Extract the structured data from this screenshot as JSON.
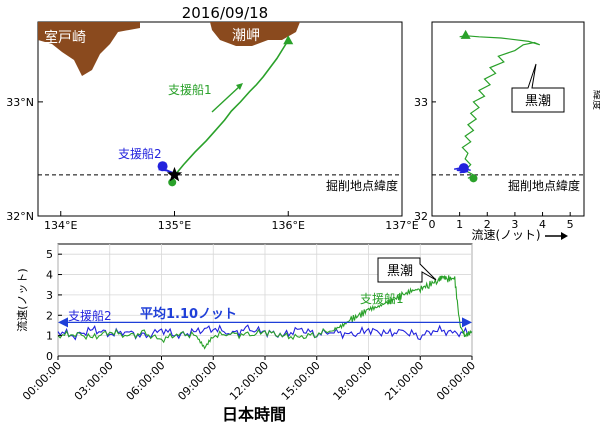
{
  "title": "2016/09/18",
  "colors": {
    "ship1": "#2aa12a",
    "ship2": "#2222dd",
    "land": "#8a4a1e",
    "avg": "#1f3fd8"
  },
  "map": {
    "type": "scatter",
    "xlim": [
      133.8,
      137.0
    ],
    "ylim": [
      32.0,
      33.7
    ],
    "xticks": [
      "134°E",
      "135°E",
      "136°E",
      "137°E"
    ],
    "yticks": [
      "32°N",
      "33°N"
    ],
    "place_muroto": "室戸崎",
    "place_shiomisaki": "潮岬",
    "ship1_label": "支援船1",
    "ship2_label": "支援船2",
    "drill_label": "掘削地点緯度",
    "drill_lat": 32.36,
    "drill_site": [
      135.0,
      32.36
    ],
    "ship1_track": [
      [
        134.98,
        32.33
      ],
      [
        135.08,
        32.45
      ],
      [
        135.18,
        32.56
      ],
      [
        135.28,
        32.66
      ],
      [
        135.36,
        32.75
      ],
      [
        135.44,
        32.84
      ],
      [
        135.5,
        32.92
      ],
      [
        135.58,
        33.0
      ],
      [
        135.66,
        33.09
      ],
      [
        135.72,
        33.15
      ],
      [
        135.78,
        33.22
      ],
      [
        135.84,
        33.3
      ],
      [
        135.9,
        33.38
      ],
      [
        135.95,
        33.46
      ],
      [
        136.0,
        33.54
      ]
    ],
    "ship2_track": [
      [
        134.86,
        32.41
      ],
      [
        134.93,
        32.4
      ],
      [
        134.98,
        32.38
      ]
    ]
  },
  "lat_speed": {
    "type": "line",
    "xlabel": "流速(ノット)",
    "xlim": [
      0,
      5.5
    ],
    "ylim": [
      32.0,
      33.7
    ],
    "xticks": [
      "0",
      "1",
      "2",
      "3",
      "4",
      "5"
    ],
    "yticks": [
      "32",
      "33"
    ],
    "ylabel": "緯度",
    "callout": "黒潮",
    "drill_label": "掘削地点緯度",
    "drill_lat": 32.36,
    "ship1": [
      [
        1.3,
        32.33
      ],
      [
        1.5,
        32.36
      ],
      [
        1.2,
        32.4
      ],
      [
        1.4,
        32.45
      ],
      [
        1.2,
        32.5
      ],
      [
        1.3,
        32.55
      ],
      [
        1.1,
        32.6
      ],
      [
        1.4,
        32.65
      ],
      [
        1.2,
        32.7
      ],
      [
        1.5,
        32.75
      ],
      [
        1.3,
        32.8
      ],
      [
        1.6,
        32.85
      ],
      [
        1.4,
        32.9
      ],
      [
        1.7,
        32.95
      ],
      [
        1.5,
        33.0
      ],
      [
        1.9,
        33.05
      ],
      [
        1.7,
        33.1
      ],
      [
        2.1,
        33.15
      ],
      [
        1.9,
        33.2
      ],
      [
        2.3,
        33.25
      ],
      [
        2.1,
        33.3
      ],
      [
        2.6,
        33.35
      ],
      [
        2.4,
        33.4
      ],
      [
        3.0,
        33.45
      ],
      [
        3.3,
        33.5
      ],
      [
        3.7,
        33.52
      ],
      [
        3.9,
        33.5
      ],
      [
        3.5,
        33.53
      ],
      [
        2.5,
        33.56
      ],
      [
        1.7,
        33.57
      ],
      [
        1.2,
        33.58
      ],
      [
        1.0,
        33.57
      ]
    ],
    "ship2": [
      [
        1.0,
        32.38
      ],
      [
        1.3,
        32.39
      ],
      [
        0.9,
        32.4
      ],
      [
        1.2,
        32.41
      ],
      [
        1.4,
        32.4
      ],
      [
        1.1,
        32.42
      ],
      [
        0.8,
        32.41
      ],
      [
        1.2,
        32.43
      ]
    ]
  },
  "time_speed": {
    "type": "line",
    "ylabel": "流速(ノット)",
    "xlabel": "日本時間",
    "ylim": [
      0,
      5.5
    ],
    "yticks": [
      "0",
      "1",
      "2",
      "3",
      "4",
      "5"
    ],
    "xticks": [
      "00:00:00",
      "03:00:00",
      "06:00:00",
      "09:00:00",
      "12:00:00",
      "15:00:00",
      "18:00:00",
      "21:00:00",
      "00:00:00"
    ],
    "average_value": 1.1,
    "average_label": "平均1.10ノット",
    "ship1_label": "支援船1",
    "ship2_label": "支援船2",
    "callout": "黒潮",
    "ship1_hours": [
      0,
      1,
      2,
      3,
      4,
      5,
      6,
      7,
      8,
      8.5,
      9,
      10,
      11,
      12,
      13,
      14,
      15,
      16,
      16.5,
      17,
      17.5,
      18,
      18.5,
      19,
      19.5,
      20,
      20.5,
      21,
      21.5,
      22,
      22.3,
      22.6,
      23,
      23.3,
      23.6,
      24
    ],
    "ship1_speed": [
      1.0,
      1.1,
      0.9,
      1.2,
      1.0,
      1.1,
      0.8,
      1.1,
      1.0,
      0.4,
      1.0,
      1.1,
      1.0,
      1.2,
      1.0,
      0.9,
      1.1,
      1.3,
      1.5,
      1.8,
      2.0,
      2.3,
      2.4,
      2.6,
      2.8,
      3.0,
      3.2,
      3.3,
      3.5,
      3.7,
      3.9,
      3.8,
      3.8,
      1.5,
      1.0,
      1.2
    ],
    "ship2_hours": [
      0,
      1,
      2,
      3,
      4,
      5,
      6,
      7,
      8,
      9,
      10,
      11,
      12,
      13,
      14,
      15,
      16,
      17,
      18,
      19,
      20,
      21,
      22,
      23,
      24
    ],
    "ship2_speed": [
      1.2,
      1.0,
      1.3,
      1.1,
      1.2,
      0.9,
      1.3,
      1.0,
      1.2,
      1.4,
      1.1,
      1.3,
      1.2,
      1.0,
      1.3,
      1.1,
      1.2,
      1.0,
      1.3,
      1.1,
      1.2,
      1.0,
      1.3,
      1.1,
      1.2
    ]
  }
}
